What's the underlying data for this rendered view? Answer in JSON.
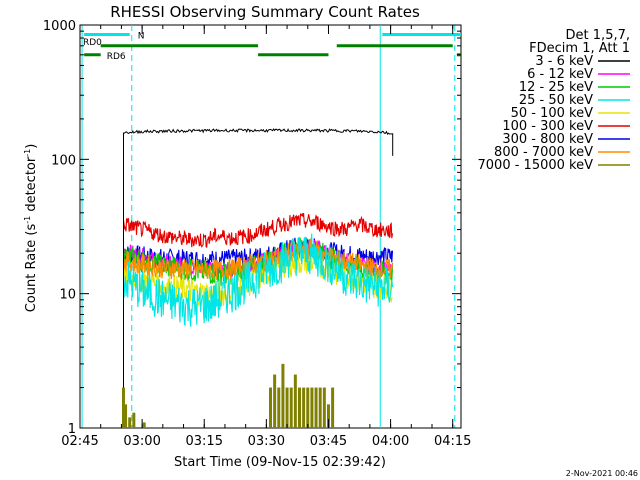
{
  "chart_data": {
    "type": "line",
    "title": "RHESSI Observing Summary Count Rates",
    "xlabel": "Start Time (09-Nov-15 02:39:42)",
    "ylabel_main": "Count Rate (s",
    "ylabel_sup1": "-1",
    "ylabel_mid": " detector",
    "ylabel_sup2": "-1",
    "ylabel_end": ")",
    "y_scale": "log",
    "ylim": [
      1,
      1000
    ],
    "xlim_min": [
      165,
      257
    ],
    "y_ticks": [
      {
        "value": 1,
        "label": "1"
      },
      {
        "value": 10,
        "label": "10"
      },
      {
        "value": 100,
        "label": "100"
      },
      {
        "value": 1000,
        "label": "1000"
      }
    ],
    "x_ticks": [
      {
        "min": 165,
        "label": "02:45"
      },
      {
        "min": 180,
        "label": "03:00"
      },
      {
        "min": 195,
        "label": "03:15"
      },
      {
        "min": 210,
        "label": "03:30"
      },
      {
        "min": 225,
        "label": "03:45"
      },
      {
        "min": 240,
        "label": "04:00"
      },
      {
        "min": 255,
        "label": "04:15"
      }
    ],
    "legend": {
      "header1": "Det 1,5,7,",
      "header2": "FDecim 1, Att 1",
      "placement": "right"
    },
    "series": [
      {
        "name": "3 - 6 keV",
        "color": "#000000",
        "points": [
          [
            175.5,
            1
          ],
          [
            175.5,
            158
          ],
          [
            180,
            161
          ],
          [
            190,
            163
          ],
          [
            200,
            164
          ],
          [
            210,
            164
          ],
          [
            220,
            164
          ],
          [
            230,
            163
          ],
          [
            238,
            160
          ],
          [
            240,
            155
          ],
          [
            240.5,
            106
          ]
        ]
      },
      {
        "name": "6 - 12 keV",
        "color": "#ff00ff",
        "points": [
          [
            175.5,
            21
          ],
          [
            185,
            17
          ],
          [
            195,
            15.5
          ],
          [
            200,
            15
          ],
          [
            205,
            16
          ],
          [
            210,
            18
          ],
          [
            215,
            21
          ],
          [
            219,
            23
          ],
          [
            222,
            22
          ],
          [
            226,
            19
          ],
          [
            232,
            16.5
          ],
          [
            236,
            15.5
          ],
          [
            240.5,
            15
          ]
        ]
      },
      {
        "name": "12 - 25 keV",
        "color": "#00cc00",
        "points": [
          [
            175.5,
            19
          ],
          [
            185,
            16
          ],
          [
            195,
            14.5
          ],
          [
            200,
            14
          ],
          [
            205,
            15
          ],
          [
            210,
            17
          ],
          [
            215,
            20
          ],
          [
            219,
            22
          ],
          [
            222,
            21
          ],
          [
            226,
            18
          ],
          [
            232,
            15.5
          ],
          [
            236,
            14.5
          ],
          [
            240.5,
            14
          ]
        ]
      },
      {
        "name": "25 - 50 keV",
        "color": "#00e5e5",
        "points": [
          [
            175.5,
            13
          ],
          [
            180,
            10.5
          ],
          [
            185,
            9
          ],
          [
            190,
            8.2
          ],
          [
            193,
            8
          ],
          [
            197,
            8.5
          ],
          [
            202,
            10.5
          ],
          [
            207,
            13
          ],
          [
            212,
            16
          ],
          [
            216,
            19
          ],
          [
            219,
            20
          ],
          [
            222,
            19
          ],
          [
            226,
            16
          ],
          [
            230,
            13
          ],
          [
            235,
            11.5
          ],
          [
            240.5,
            11
          ]
        ]
      },
      {
        "name": "50 - 100 keV",
        "color": "#e5e500",
        "points": [
          [
            175.5,
            14
          ],
          [
            185,
            11.5
          ],
          [
            195,
            10
          ],
          [
            200,
            10
          ],
          [
            205,
            11.5
          ],
          [
            210,
            14
          ],
          [
            215,
            16.5
          ],
          [
            219,
            17.5
          ],
          [
            222,
            17
          ],
          [
            226,
            14.5
          ],
          [
            232,
            12.5
          ],
          [
            236,
            11.5
          ],
          [
            240.5,
            11
          ]
        ]
      },
      {
        "name": "100 - 300 keV",
        "color": "#e50000",
        "points": [
          [
            175.5,
            33
          ],
          [
            180,
            30
          ],
          [
            185,
            27
          ],
          [
            190,
            25.5
          ],
          [
            195,
            25
          ],
          [
            198,
            27
          ],
          [
            202,
            26
          ],
          [
            206,
            27
          ],
          [
            210,
            30
          ],
          [
            214,
            33
          ],
          [
            218,
            35
          ],
          [
            222,
            34
          ],
          [
            226,
            31
          ],
          [
            229,
            30
          ],
          [
            232,
            33
          ],
          [
            236,
            30
          ],
          [
            240.5,
            29
          ]
        ]
      },
      {
        "name": "300 - 800 keV",
        "color": "#0000e5",
        "points": [
          [
            175.5,
            20
          ],
          [
            185,
            18.5
          ],
          [
            195,
            18
          ],
          [
            205,
            18.5
          ],
          [
            212,
            20
          ],
          [
            218,
            23
          ],
          [
            222,
            22
          ],
          [
            228,
            20
          ],
          [
            234,
            19
          ],
          [
            240.5,
            19
          ]
        ]
      },
      {
        "name": "800 - 7000 keV",
        "color": "#ff8c00",
        "points": [
          [
            175.5,
            17.5
          ],
          [
            185,
            15.5
          ],
          [
            195,
            15
          ],
          [
            200,
            15
          ],
          [
            205,
            16
          ],
          [
            210,
            17.5
          ],
          [
            215,
            20
          ],
          [
            219,
            21.5
          ],
          [
            222,
            21
          ],
          [
            226,
            18.5
          ],
          [
            232,
            16.5
          ],
          [
            236,
            15.5
          ],
          [
            240.5,
            15
          ]
        ]
      },
      {
        "name": "7000 - 15000 keV",
        "color": "#808000",
        "points": []
      }
    ],
    "high_energy_bursts": [
      {
        "x": 175.5,
        "y": 2
      },
      {
        "x": 176,
        "y": 1.5
      },
      {
        "x": 177,
        "y": 1.2
      },
      {
        "x": 178,
        "y": 1.3
      },
      {
        "x": 180.5,
        "y": 1.1
      },
      {
        "x": 211,
        "y": 2
      },
      {
        "x": 212,
        "y": 2.5
      },
      {
        "x": 213,
        "y": 2
      },
      {
        "x": 214,
        "y": 3
      },
      {
        "x": 215,
        "y": 2
      },
      {
        "x": 216,
        "y": 2
      },
      {
        "x": 217,
        "y": 2.5
      },
      {
        "x": 218,
        "y": 2
      },
      {
        "x": 219,
        "y": 2
      },
      {
        "x": 220,
        "y": 2
      },
      {
        "x": 221,
        "y": 2
      },
      {
        "x": 222,
        "y": 2
      },
      {
        "x": 223,
        "y": 2
      },
      {
        "x": 224,
        "y": 2
      },
      {
        "x": 225,
        "y": 1.5
      },
      {
        "x": 226,
        "y": 2
      }
    ],
    "attenuator_segments": [
      {
        "label": "RD0",
        "color": "#008000",
        "y": 700,
        "ranges": [
          [
            170,
            208
          ],
          [
            227,
            255
          ]
        ]
      },
      {
        "label": "RD6",
        "color": "#008000",
        "y": 600,
        "ranges": [
          [
            166,
            170
          ],
          [
            208,
            225
          ],
          [
            256,
            257
          ]
        ]
      }
    ],
    "night_segments": {
      "label": "N",
      "color": "#00e5e5",
      "y": 850,
      "ranges": [
        [
          166,
          177
        ],
        [
          238,
          257
        ]
      ]
    },
    "vertical_markers": [
      {
        "x": 165.5,
        "style": "solid",
        "color": "#00e5e5"
      },
      {
        "x": 177.5,
        "style": "dashed",
        "color": "#00e5e5"
      },
      {
        "x": 237.5,
        "style": "solid",
        "color": "#00e5e5"
      },
      {
        "x": 255.5,
        "style": "dashed",
        "color": "#00e5e5"
      }
    ]
  },
  "footer": {
    "timestamp": "2-Nov-2021 00:46"
  }
}
